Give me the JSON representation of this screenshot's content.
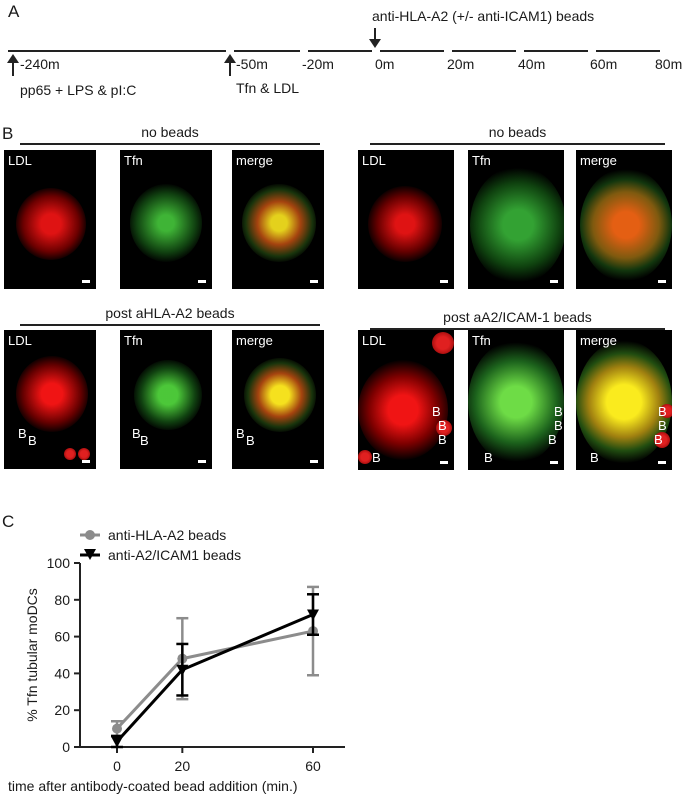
{
  "panel_a": {
    "letter": "A",
    "beads_note": "anti-HLA-A2 (+/- anti-ICAM1) beads",
    "times": [
      "-240m",
      "-50m",
      "-20m",
      "0m",
      "20m",
      "40m",
      "60m",
      "80m"
    ],
    "treatment1": "pp65 + LPS & pI:C",
    "treatment2": "Tfn & LDL"
  },
  "panel_b": {
    "letter": "B",
    "groups": [
      {
        "title": "no beads"
      },
      {
        "title": "no beads"
      },
      {
        "title": "post aHLA-A2 beads"
      },
      {
        "title": "post aA2/ICAM-1 beads"
      }
    ],
    "channels": [
      "LDL",
      "Tfn",
      "merge"
    ],
    "bead_marker": "B"
  },
  "panel_c": {
    "letter": "C"
  },
  "chart_data": {
    "type": "line",
    "x": [
      0,
      20,
      60
    ],
    "xticks": [
      "0",
      "20",
      "60"
    ],
    "yticks": [
      "0",
      "20",
      "40",
      "60",
      "80",
      "100"
    ],
    "ylim": [
      0,
      100
    ],
    "xlabel": "time after antibody-coated bead addition (min.)",
    "ylabel": "% Tfn tubular moDCs",
    "series": [
      {
        "name": "anti-HLA-A2 beads",
        "color": "#8c8c8c",
        "marker": "circle",
        "values": [
          10,
          48,
          63
        ],
        "err": [
          4,
          22,
          24
        ]
      },
      {
        "name": "anti-A2/ICAM1 beads",
        "color": "#000000",
        "marker": "triangle-down",
        "values": [
          3,
          42,
          72
        ],
        "err": [
          3,
          14,
          11
        ]
      }
    ]
  }
}
